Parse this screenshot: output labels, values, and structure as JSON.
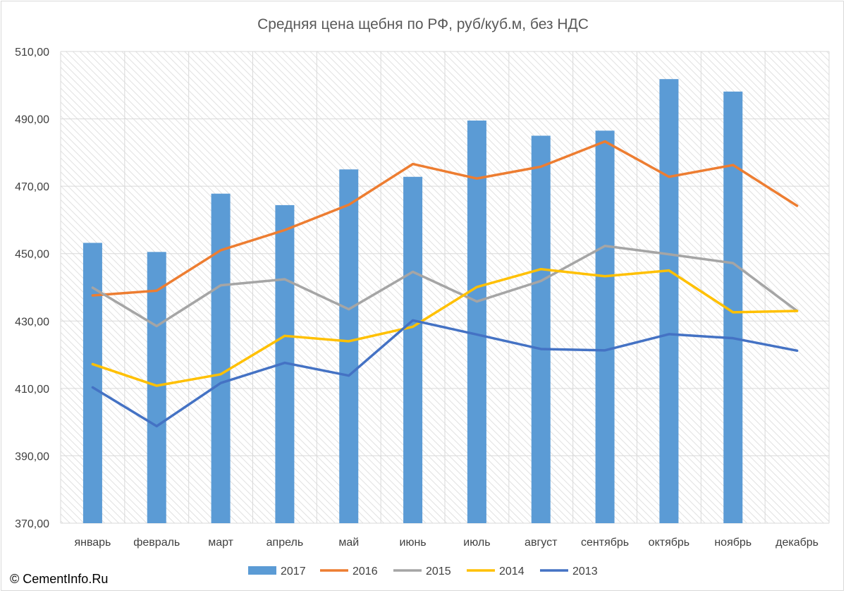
{
  "copyright": "© CementInfo.Ru",
  "chart_data": {
    "type": "bar",
    "title": "Средняя цена щебня по РФ, руб/куб.м, без НДС",
    "xlabel": "",
    "ylabel": "",
    "ylim": [
      370,
      510
    ],
    "ytick_step": 20,
    "ytick_labels": [
      "370,00",
      "390,00",
      "410,00",
      "430,00",
      "450,00",
      "470,00",
      "490,00",
      "510,00"
    ],
    "grid": true,
    "legend_position": "bottom",
    "categories": [
      "январь",
      "февраль",
      "март",
      "апрель",
      "май",
      "июнь",
      "июль",
      "август",
      "сентябрь",
      "октябрь",
      "ноябрь",
      "декабрь"
    ],
    "series": [
      {
        "name": "2017",
        "kind": "bar",
        "color": "#5b9bd5",
        "values": [
          453.2,
          450.5,
          467.8,
          464.4,
          475.0,
          472.8,
          489.5,
          485.0,
          486.5,
          501.8,
          498.1,
          null
        ]
      },
      {
        "name": "2016",
        "kind": "line",
        "color": "#ed7d31",
        "values": [
          437.6,
          439.0,
          451.0,
          457.0,
          464.5,
          476.6,
          472.3,
          475.8,
          483.3,
          472.8,
          476.3,
          464.2
        ]
      },
      {
        "name": "2015",
        "kind": "line",
        "color": "#a5a5a5",
        "values": [
          439.9,
          428.5,
          440.6,
          442.4,
          433.5,
          444.6,
          435.8,
          441.9,
          452.3,
          449.8,
          447.2,
          433.0
        ]
      },
      {
        "name": "2014",
        "kind": "line",
        "color": "#ffc000",
        "values": [
          417.2,
          410.8,
          414.2,
          425.6,
          424.0,
          428.3,
          440.1,
          445.4,
          443.3,
          445.0,
          432.6,
          433.0
        ]
      },
      {
        "name": "2013",
        "kind": "line",
        "color": "#4472c4",
        "values": [
          410.3,
          398.8,
          411.6,
          417.6,
          413.8,
          430.2,
          426.0,
          421.7,
          421.3,
          426.1,
          424.9,
          421.2
        ]
      }
    ]
  }
}
